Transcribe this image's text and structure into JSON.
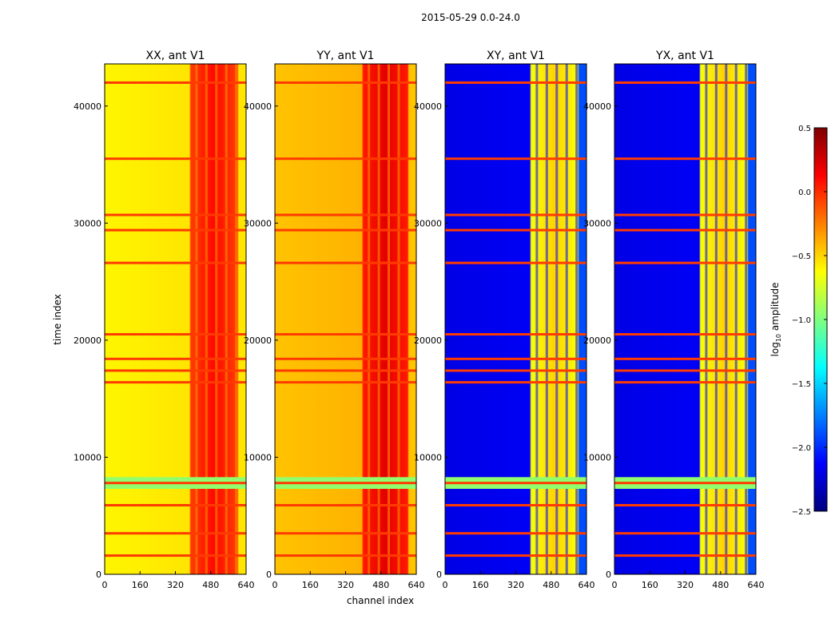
{
  "figure": {
    "suptitle": "2015-05-29 0.0-24.0",
    "xlabel": "channel index",
    "ylabel": "time index"
  },
  "colorbar": {
    "label_main": "log",
    "label_sub": "10",
    "label_tail": " amplitude",
    "range": [
      -2.5,
      0.5
    ],
    "ticks": [
      0.5,
      0.0,
      -0.5,
      -1.0,
      -1.5,
      -2.0,
      -2.5
    ],
    "tick_labels": [
      "0.5",
      "0.0",
      "−0.5",
      "−1.0",
      "−1.5",
      "−2.0",
      "−2.5"
    ],
    "colormap": "jet",
    "jet_stops": [
      "#00007f",
      "#0000ff",
      "#007fff",
      "#00ffff",
      "#7fff7f",
      "#ffff00",
      "#ff7f00",
      "#ff0000",
      "#7f0000"
    ]
  },
  "chart_data": {
    "type": "heatmap",
    "x_ticks": [
      0,
      160,
      320,
      480,
      640
    ],
    "x_tick_labels": [
      "0",
      "160",
      "320",
      "480",
      "640"
    ],
    "y_ticks": [
      0,
      10000,
      20000,
      30000,
      40000
    ],
    "y_tick_labels": [
      "0",
      "10000",
      "20000",
      "30000",
      "40000"
    ],
    "xlim": [
      0,
      640
    ],
    "ylim": [
      0,
      43600
    ],
    "panels": [
      {
        "title": "XX, ant V1",
        "kind": "parallel",
        "base_log_amp": -0.6,
        "band": [
          390,
          600
        ],
        "band_log_amp": -0.05,
        "right_edge_log_amp": -0.55
      },
      {
        "title": "YY, ant V1",
        "kind": "parallel",
        "base_log_amp": -0.45,
        "band": [
          400,
          600
        ],
        "band_log_amp": 0.05,
        "right_edge_log_amp": -0.45
      },
      {
        "title": "XY, ant V1",
        "kind": "cross",
        "base_log_amp": -2.2,
        "band": [
          390,
          600
        ],
        "band_log_amp": -0.65,
        "right_edge_log_amp": -1.9
      },
      {
        "title": "YX, ant V1",
        "kind": "cross",
        "base_log_amp": -2.2,
        "band": [
          390,
          600
        ],
        "band_log_amp": -0.65,
        "right_edge_log_amp": -1.9
      }
    ],
    "flagged_rows_time_index": [
      7800,
      1600,
      3500,
      5900,
      16400,
      17400,
      18400,
      20500,
      26600,
      29400,
      30700,
      35500,
      42000
    ],
    "flagged_rows_log_amp": -0.05,
    "gap_block_time_index": [
      7300,
      8300
    ],
    "gap_block_log_amp": -0.95
  }
}
